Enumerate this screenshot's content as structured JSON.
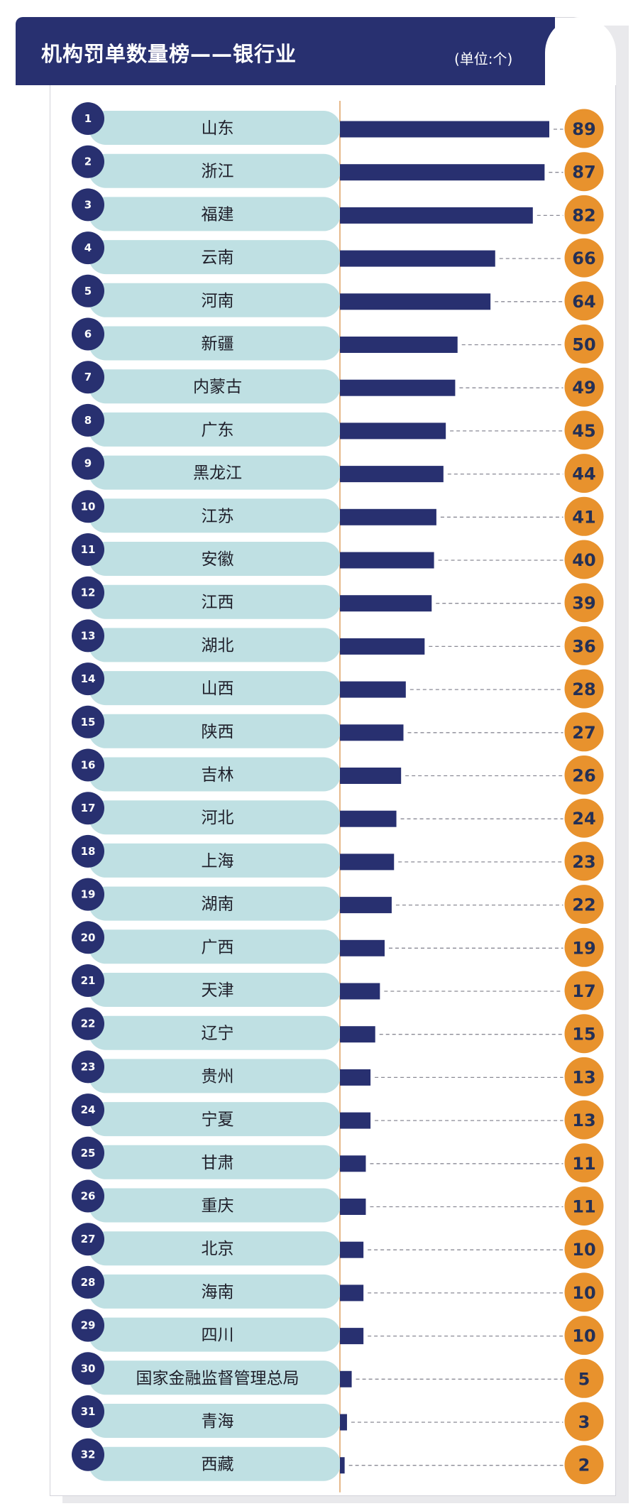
{
  "header": {
    "title": "机构罚单数量榜——银行业",
    "unit": "(单位:个)"
  },
  "colors": {
    "header_bg": "#283070",
    "bar": "#283070",
    "rank_circle": "#283070",
    "label_pill": "#bfe0e3",
    "value_circle": "#e8922d",
    "axis_line": "#e6b889",
    "dash": "#8a8a95"
  },
  "chart_data": {
    "type": "bar",
    "orientation": "horizontal",
    "title": "机构罚单数量榜——银行业",
    "unit": "(单位:个)",
    "xlabel": "",
    "ylabel": "",
    "xlim": [
      0,
      89
    ],
    "grid": false,
    "legend": "none",
    "ranks": [
      "1",
      "2",
      "3",
      "4",
      "5",
      "6",
      "7",
      "8",
      "9",
      "10",
      "11",
      "12",
      "13",
      "14",
      "15",
      "16",
      "17",
      "18",
      "19",
      "20",
      "21",
      "22",
      "23",
      "24",
      "25",
      "26",
      "27",
      "28",
      "29",
      "30",
      "31",
      "32"
    ],
    "categories": [
      "山东",
      "浙江",
      "福建",
      "云南",
      "河南",
      "新疆",
      "内蒙古",
      "广东",
      "黑龙江",
      "江苏",
      "安徽",
      "江西",
      "湖北",
      "山西",
      "陕西",
      "吉林",
      "河北",
      "上海",
      "湖南",
      "广西",
      "天津",
      "辽宁",
      "贵州",
      "宁夏",
      "甘肃",
      "重庆",
      "北京",
      "海南",
      "四川",
      "国家金融监督管理总局",
      "青海",
      "西藏"
    ],
    "values": [
      89,
      87,
      82,
      66,
      64,
      50,
      49,
      45,
      44,
      41,
      40,
      39,
      36,
      28,
      27,
      26,
      24,
      23,
      22,
      19,
      17,
      15,
      13,
      13,
      11,
      11,
      10,
      10,
      10,
      5,
      3,
      2
    ]
  }
}
